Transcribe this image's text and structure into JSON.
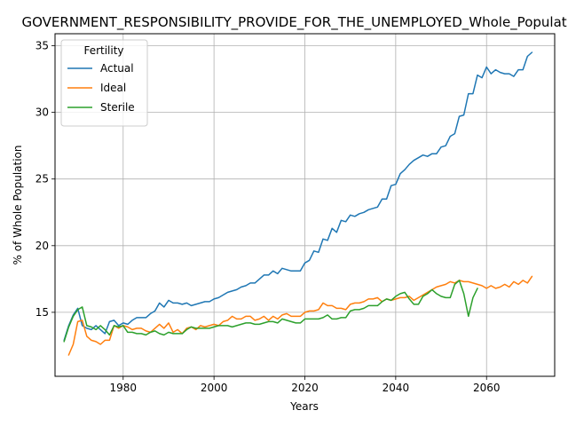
{
  "chart_data": {
    "type": "line",
    "title": "GOVERNMENT_RESPONSIBILITY_PROVIDE_FOR_THE_UNEMPLOYED_Whole_Population",
    "xlabel": "Years",
    "ylabel": "% of Whole Population",
    "xlim": [
      1965,
      2075
    ],
    "ylim": [
      10.2,
      35.9
    ],
    "xticks": [
      1980,
      2000,
      2020,
      2040,
      2060
    ],
    "yticks": [
      15,
      20,
      25,
      30,
      35
    ],
    "grid": true,
    "legend": {
      "title": "Fertility",
      "placement": "upper-left"
    },
    "series": [
      {
        "name": "Actual",
        "color": "#1f77b4",
        "x": [
          1967,
          1968,
          1969,
          1970,
          1971,
          1972,
          1973,
          1974,
          1975,
          1976,
          1977,
          1978,
          1979,
          1980,
          1981,
          1982,
          1983,
          1984,
          1985,
          1986,
          1987,
          1988,
          1989,
          1990,
          1991,
          1992,
          1993,
          1994,
          1995,
          1996,
          1997,
          1998,
          1999,
          2000,
          2001,
          2002,
          2003,
          2004,
          2005,
          2006,
          2007,
          2008,
          2009,
          2010,
          2011,
          2012,
          2013,
          2014,
          2015,
          2016,
          2017,
          2018,
          2019,
          2020,
          2021,
          2022,
          2023,
          2024,
          2025,
          2026,
          2027,
          2028,
          2029,
          2030,
          2031,
          2032,
          2033,
          2034,
          2035,
          2036,
          2037,
          2038,
          2039,
          2040,
          2041,
          2042,
          2043,
          2044,
          2045,
          2046,
          2047,
          2048,
          2049,
          2050,
          2051,
          2052,
          2053,
          2054,
          2055,
          2056,
          2057,
          2058,
          2059,
          2060,
          2061,
          2062,
          2063,
          2064,
          2065,
          2066,
          2067,
          2068,
          2069,
          2070
        ],
        "y": [
          12.9,
          14.0,
          14.8,
          15.3,
          14.0,
          13.8,
          13.7,
          14.0,
          13.7,
          13.4,
          14.3,
          14.4,
          14.0,
          14.2,
          14.1,
          14.4,
          14.6,
          14.6,
          14.6,
          14.9,
          15.1,
          15.7,
          15.4,
          15.9,
          15.7,
          15.7,
          15.6,
          15.7,
          15.5,
          15.6,
          15.7,
          15.8,
          15.8,
          16.0,
          16.1,
          16.3,
          16.5,
          16.6,
          16.7,
          16.9,
          17.0,
          17.2,
          17.2,
          17.5,
          17.8,
          17.8,
          18.1,
          17.9,
          18.3,
          18.2,
          18.1,
          18.1,
          18.1,
          18.7,
          18.9,
          19.6,
          19.5,
          20.5,
          20.4,
          21.3,
          21.0,
          21.9,
          21.8,
          22.3,
          22.2,
          22.4,
          22.5,
          22.7,
          22.8,
          22.9,
          23.5,
          23.5,
          24.5,
          24.6,
          25.4,
          25.7,
          26.1,
          26.4,
          26.6,
          26.8,
          26.7,
          26.9,
          26.9,
          27.4,
          27.5,
          28.2,
          28.4,
          29.7,
          29.8,
          31.4,
          31.4,
          32.8,
          32.6,
          33.4,
          32.9,
          33.2,
          33.0,
          32.9,
          32.9,
          32.7,
          33.2,
          33.2,
          34.2,
          34.5
        ]
      },
      {
        "name": "Ideal",
        "color": "#ff7f0e",
        "x": [
          1968,
          1969,
          1970,
          1971,
          1972,
          1973,
          1974,
          1975,
          1976,
          1977,
          1978,
          1979,
          1980,
          1981,
          1982,
          1983,
          1984,
          1985,
          1986,
          1987,
          1988,
          1989,
          1990,
          1991,
          1992,
          1993,
          1994,
          1995,
          1996,
          1997,
          1998,
          1999,
          2000,
          2001,
          2002,
          2003,
          2004,
          2005,
          2006,
          2007,
          2008,
          2009,
          2010,
          2011,
          2012,
          2013,
          2014,
          2015,
          2016,
          2017,
          2018,
          2019,
          2020,
          2021,
          2022,
          2023,
          2024,
          2025,
          2026,
          2027,
          2028,
          2029,
          2030,
          2031,
          2032,
          2033,
          2034,
          2035,
          2036,
          2037,
          2038,
          2039,
          2040,
          2041,
          2042,
          2043,
          2044,
          2045,
          2046,
          2047,
          2048,
          2049,
          2050,
          2051,
          2052,
          2053,
          2054,
          2055,
          2056,
          2057,
          2058,
          2059,
          2060,
          2061,
          2062,
          2063,
          2064,
          2065,
          2066,
          2067,
          2068,
          2069,
          2070
        ],
        "y": [
          11.8,
          12.6,
          14.3,
          14.4,
          13.2,
          12.9,
          12.8,
          12.6,
          12.9,
          12.9,
          14.0,
          13.8,
          14.0,
          13.9,
          13.7,
          13.8,
          13.8,
          13.6,
          13.5,
          13.8,
          14.1,
          13.8,
          14.2,
          13.5,
          13.7,
          13.4,
          13.8,
          13.9,
          13.7,
          14.0,
          13.9,
          14.0,
          14.1,
          14.0,
          14.3,
          14.4,
          14.7,
          14.5,
          14.5,
          14.7,
          14.7,
          14.4,
          14.5,
          14.7,
          14.4,
          14.7,
          14.5,
          14.8,
          14.9,
          14.7,
          14.7,
          14.7,
          15.0,
          15.1,
          15.1,
          15.2,
          15.7,
          15.5,
          15.5,
          15.3,
          15.3,
          15.2,
          15.6,
          15.7,
          15.7,
          15.8,
          16.0,
          16.0,
          16.1,
          15.8,
          16.0,
          15.9,
          16.0,
          16.1,
          16.1,
          16.2,
          15.9,
          16.1,
          16.3,
          16.5,
          16.7,
          16.9,
          17.0,
          17.1,
          17.3,
          17.2,
          17.4,
          17.3,
          17.3,
          17.2,
          17.1,
          17.0,
          16.8,
          17.0,
          16.8,
          16.9,
          17.1,
          16.9,
          17.3,
          17.1,
          17.4,
          17.2,
          17.7
        ]
      },
      {
        "name": "Sterile",
        "color": "#2ca02c",
        "x": [
          1967,
          1968,
          1969,
          1970,
          1971,
          1972,
          1973,
          1974,
          1975,
          1976,
          1977,
          1978,
          1979,
          1980,
          1981,
          1982,
          1983,
          1984,
          1985,
          1986,
          1987,
          1988,
          1989,
          1990,
          1991,
          1992,
          1993,
          1994,
          1995,
          1996,
          1997,
          1998,
          1999,
          2000,
          2001,
          2002,
          2003,
          2004,
          2005,
          2006,
          2007,
          2008,
          2009,
          2010,
          2011,
          2012,
          2013,
          2014,
          2015,
          2016,
          2017,
          2018,
          2019,
          2020,
          2021,
          2022,
          2023,
          2024,
          2025,
          2026,
          2027,
          2028,
          2029,
          2030,
          2031,
          2032,
          2033,
          2034,
          2035,
          2036,
          2037,
          2038,
          2039,
          2040,
          2041,
          2042,
          2043,
          2044,
          2045,
          2046,
          2047,
          2048,
          2049,
          2050,
          2051,
          2052,
          2053,
          2054,
          2055,
          2056,
          2057,
          2058
        ],
        "y": [
          12.8,
          13.9,
          14.7,
          15.2,
          15.4,
          14.0,
          13.9,
          13.7,
          14.0,
          13.7,
          13.3,
          14.0,
          13.9,
          14.0,
          13.5,
          13.5,
          13.4,
          13.4,
          13.3,
          13.5,
          13.6,
          13.4,
          13.3,
          13.5,
          13.4,
          13.4,
          13.4,
          13.7,
          13.9,
          13.8,
          13.8,
          13.8,
          13.8,
          13.9,
          14.0,
          14.0,
          14.0,
          13.9,
          14.0,
          14.1,
          14.2,
          14.2,
          14.1,
          14.1,
          14.2,
          14.3,
          14.3,
          14.2,
          14.5,
          14.4,
          14.3,
          14.2,
          14.2,
          14.5,
          14.5,
          14.5,
          14.5,
          14.6,
          14.8,
          14.5,
          14.5,
          14.6,
          14.6,
          15.1,
          15.2,
          15.2,
          15.3,
          15.5,
          15.5,
          15.5,
          15.8,
          16.0,
          15.9,
          16.2,
          16.4,
          16.5,
          16.0,
          15.6,
          15.6,
          16.2,
          16.4,
          16.7,
          16.4,
          16.2,
          16.1,
          16.1,
          17.1,
          17.4,
          16.4,
          14.7,
          16.1,
          16.8
        ]
      }
    ]
  }
}
